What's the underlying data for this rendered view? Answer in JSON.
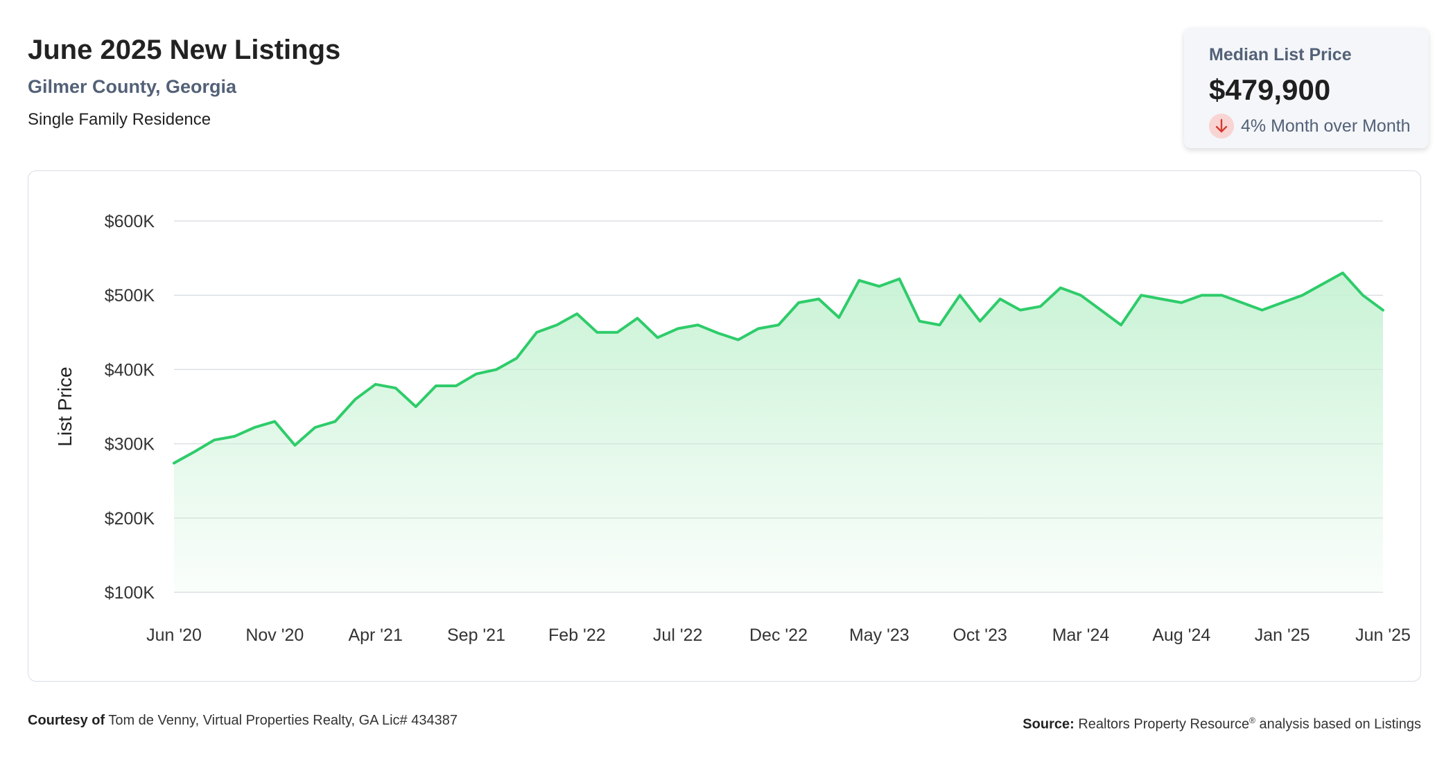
{
  "header": {
    "title": "June 2025 New Listings",
    "location": "Gilmer County, Georgia",
    "property_type": "Single Family Residence"
  },
  "summary_card": {
    "label": "Median List Price",
    "value": "$479,900",
    "change_text": "4% Month over Month",
    "change_icon": "down-arrow-icon"
  },
  "footer": {
    "courtesy_label": "Courtesy of",
    "courtesy_text": "Tom de Venny, Virtual Properties Realty, GA Lic# 434387",
    "source_label": "Source:",
    "source_name": "Realtors Property Resource",
    "source_mark": "®",
    "source_text": "analysis based on Listings"
  },
  "colors": {
    "line": "#2ecc6a",
    "area_top": "#c6f2d3",
    "gridline": "#dcdfe4",
    "tick_text": "#333333",
    "subtitle": "#536177",
    "down_badge": "#f8d4d2",
    "down_arrow": "#d33a2f"
  },
  "chart_data": {
    "type": "area",
    "ylabel": "List Price",
    "xlabel": "",
    "ylim": [
      100000,
      600000
    ],
    "y_ticks": [
      100000,
      200000,
      300000,
      400000,
      500000,
      600000
    ],
    "y_tick_labels": [
      "$100K",
      "$200K",
      "$300K",
      "$400K",
      "$500K",
      "$600K"
    ],
    "x_tick_labels": [
      "Jun '20",
      "Nov '20",
      "Apr '21",
      "Sep '21",
      "Feb '22",
      "Jul '22",
      "Dec '22",
      "May '23",
      "Oct '23",
      "Mar '24",
      "Aug '24",
      "Jan '25",
      "Jun '25"
    ],
    "x_tick_interval_months": 5,
    "grid": true,
    "legend": "none",
    "categories": [
      "Jun '20",
      "Jul '20",
      "Aug '20",
      "Sep '20",
      "Oct '20",
      "Nov '20",
      "Dec '20",
      "Jan '21",
      "Feb '21",
      "Mar '21",
      "Apr '21",
      "May '21",
      "Jun '21",
      "Jul '21",
      "Aug '21",
      "Sep '21",
      "Oct '21",
      "Nov '21",
      "Dec '21",
      "Jan '22",
      "Feb '22",
      "Mar '22",
      "Apr '22",
      "May '22",
      "Jun '22",
      "Jul '22",
      "Aug '22",
      "Sep '22",
      "Oct '22",
      "Nov '22",
      "Dec '22",
      "Jan '23",
      "Feb '23",
      "Mar '23",
      "Apr '23",
      "May '23",
      "Jun '23",
      "Jul '23",
      "Aug '23",
      "Sep '23",
      "Oct '23",
      "Nov '23",
      "Dec '23",
      "Jan '24",
      "Feb '24",
      "Mar '24",
      "Apr '24",
      "May '24",
      "Jun '24",
      "Jul '24",
      "Aug '24",
      "Sep '24",
      "Oct '24",
      "Nov '24",
      "Dec '24",
      "Jan '25",
      "Feb '25",
      "Mar '25",
      "Apr '25",
      "May '25",
      "Jun '25"
    ],
    "series": [
      {
        "values": [
          274000,
          289000,
          305000,
          310000,
          322000,
          330000,
          298000,
          322000,
          330000,
          360000,
          380000,
          375000,
          350000,
          378000,
          378000,
          394000,
          400000,
          415000,
          450000,
          460000,
          475000,
          450000,
          450000,
          469000,
          443000,
          455000,
          460000,
          449000,
          440000,
          455000,
          460000,
          490000,
          495000,
          470000,
          520000,
          512000,
          522000,
          465000,
          460000,
          500000,
          465000,
          495000,
          480000,
          485000,
          510000,
          500000,
          480000,
          460000,
          500000,
          495000,
          490000,
          500000,
          500000,
          490000,
          480000,
          490000,
          500000,
          515000,
          530000,
          500000,
          479900
        ]
      }
    ]
  }
}
